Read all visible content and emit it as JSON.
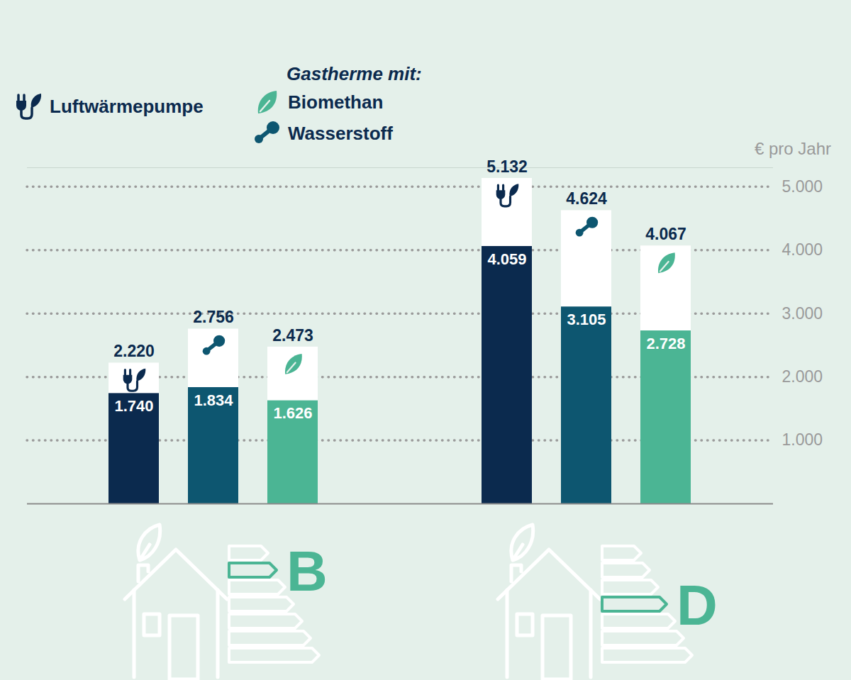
{
  "chart_data": {
    "type": "bar",
    "ylabel": "€ pro Jahr",
    "legend_title": "Gastherme mit:",
    "categories": [
      "B",
      "D"
    ],
    "series": [
      {
        "name": "Luftwärmepumpe",
        "color": "#0b2a4e",
        "values": [
          1740,
          4059
        ],
        "value_labels": [
          "1.740",
          "4.059"
        ],
        "totals": [
          2220,
          5132
        ],
        "total_labels": [
          "2.220",
          "5.132"
        ]
      },
      {
        "name": "Wasserstoff",
        "color": "#0d5670",
        "values": [
          1834,
          3105
        ],
        "value_labels": [
          "1.834",
          "3.105"
        ],
        "totals": [
          2756,
          4624
        ],
        "total_labels": [
          "2.756",
          "4.624"
        ]
      },
      {
        "name": "Biomethan",
        "color": "#4bb594",
        "values": [
          1626,
          2728
        ],
        "value_labels": [
          "1.626",
          "2.728"
        ],
        "totals": [
          2473,
          4067
        ],
        "total_labels": [
          "2.473",
          "4.067"
        ]
      }
    ],
    "ylim": [
      0,
      5300
    ],
    "yticks": [
      {
        "value": 1000,
        "label": "1.000"
      },
      {
        "value": 2000,
        "label": "2.000"
      },
      {
        "value": 3000,
        "label": "3.000"
      },
      {
        "value": 4000,
        "label": "4.000"
      },
      {
        "value": 5000,
        "label": "5.000"
      }
    ],
    "grid": true,
    "data_labels": true,
    "legend": "top-left"
  }
}
